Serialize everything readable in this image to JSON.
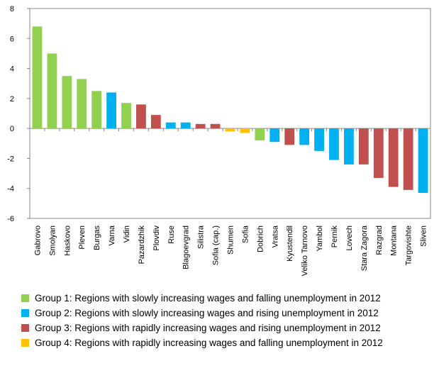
{
  "chart_data": {
    "type": "bar",
    "title": "",
    "xlabel": "",
    "ylabel": "",
    "ylim": [
      -6,
      8
    ],
    "yticks": [
      -6,
      -4,
      -2,
      0,
      2,
      4,
      6,
      8
    ],
    "grid": false,
    "legend_position": "bottom",
    "categories": [
      "Gabrovo",
      "Smolyan",
      "Haskovo",
      "Pleven",
      "Burgas",
      "Varna",
      "Vidin",
      "Pazardzhik",
      "Plovdiv",
      "Ruse",
      "Blagoevgrad",
      "Silistra",
      "Sofia (cap.)",
      "Shumen",
      "Sofia",
      "Dobrich",
      "Vratsa",
      "Kyustendil",
      "Veliko Tarnovo",
      "Yambol",
      "Pernik",
      "Lovech",
      "Stara Zagora",
      "Razgrad",
      "Montana",
      "Targovishte",
      "Sliven"
    ],
    "values": [
      6.8,
      5.0,
      3.5,
      3.3,
      2.5,
      2.4,
      1.7,
      1.6,
      0.9,
      0.4,
      0.4,
      0.3,
      0.3,
      -0.2,
      -0.3,
      -0.8,
      -0.9,
      -1.1,
      -1.1,
      -1.5,
      -2.1,
      -2.4,
      -2.4,
      -3.3,
      -3.9,
      -4.1,
      -4.3
    ],
    "groups": [
      1,
      1,
      1,
      1,
      1,
      2,
      1,
      3,
      3,
      2,
      2,
      3,
      3,
      4,
      4,
      1,
      2,
      3,
      2,
      2,
      2,
      2,
      3,
      3,
      3,
      3,
      2
    ],
    "series": [
      {
        "name": "Group 1: Regions with slowly increasing wages and falling unemployment  in 2012",
        "color": "#92d050"
      },
      {
        "name": "Group 2: Regions with slowly increasing wages and rising unemployment  in 2012",
        "color": "#00b0f0"
      },
      {
        "name": "Group 3: Regions with rapidly increasing wages and rising unemployment  in 2012",
        "color": "#c0504d"
      },
      {
        "name": "Group 4: Regions with rapidly increasing wages and falling unemployment  in 2012",
        "color": "#ffc000"
      }
    ]
  }
}
